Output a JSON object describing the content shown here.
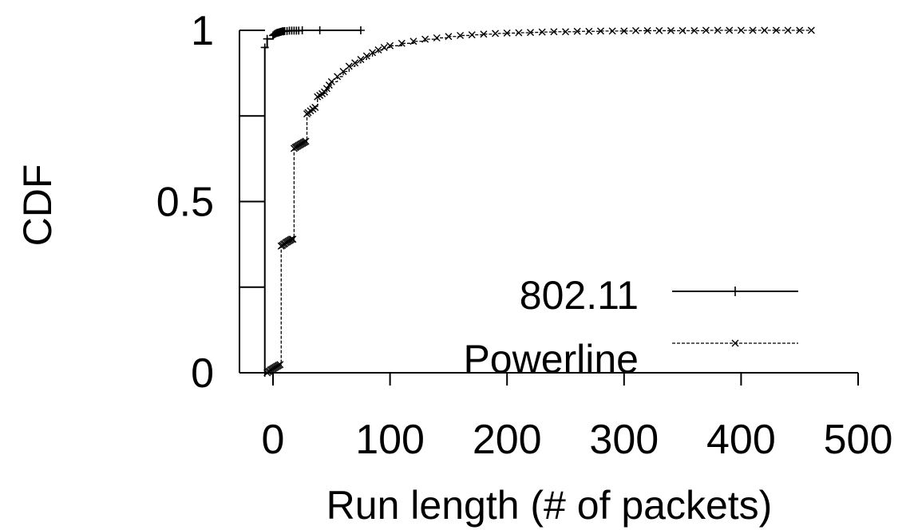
{
  "chart_data": {
    "type": "line",
    "xlabel": "Run length (# of packets)",
    "ylabel": "CDF",
    "xlim": [
      -10,
      500
    ],
    "ylim": [
      0,
      1
    ],
    "x_ticks": [
      0,
      100,
      200,
      300,
      400,
      500
    ],
    "x_tick_labels": [
      "0",
      "100",
      "200",
      "300",
      "400",
      "500"
    ],
    "y_ticks": [
      0,
      0.25,
      0.5,
      0.75,
      1
    ],
    "y_tick_labels": [
      "0",
      "",
      "0.5",
      "",
      "1"
    ],
    "legend_position": "bottom-right",
    "series": [
      {
        "name": "802.11",
        "style": "solid",
        "marker": "plus",
        "color": "#000000",
        "x": [
          -7,
          -7,
          -5,
          0,
          1,
          2,
          3,
          4,
          5,
          6,
          7,
          8,
          9,
          10,
          12,
          14,
          16,
          18,
          20,
          22,
          25,
          40,
          75
        ],
        "y": [
          0,
          0.95,
          0.975,
          0.985,
          0.988,
          0.99,
          0.992,
          0.993,
          0.994,
          0.995,
          0.996,
          0.997,
          0.997,
          0.998,
          0.998,
          0.999,
          0.999,
          0.999,
          0.999,
          0.999,
          1,
          1,
          1
        ]
      },
      {
        "name": "Powerline",
        "style": "dashed",
        "marker": "x",
        "color": "#000000",
        "x": [
          -5,
          -4,
          -3,
          -2,
          -1,
          0,
          1,
          2,
          3,
          4,
          5,
          6,
          7,
          8,
          9,
          10,
          11,
          12,
          13,
          14,
          15,
          16,
          17,
          18,
          19,
          20,
          21,
          22,
          23,
          24,
          25,
          26,
          27,
          28,
          29,
          30,
          32,
          34,
          36,
          38,
          40,
          42,
          44,
          46,
          48,
          50,
          55,
          60,
          65,
          70,
          75,
          80,
          85,
          90,
          95,
          100,
          110,
          120,
          130,
          140,
          150,
          160,
          170,
          180,
          190,
          200,
          210,
          220,
          230,
          240,
          250,
          260,
          270,
          280,
          290,
          300,
          310,
          320,
          330,
          340,
          350,
          360,
          370,
          380,
          390,
          400,
          410,
          420,
          430,
          440,
          450,
          460
        ],
        "y": [
          0,
          0.003,
          0.005,
          0.008,
          0.01,
          0.012,
          0.014,
          0.016,
          0.018,
          0.02,
          0.022,
          0.024,
          0.37,
          0.372,
          0.375,
          0.377,
          0.38,
          0.382,
          0.384,
          0.386,
          0.388,
          0.39,
          0.39,
          0.655,
          0.658,
          0.66,
          0.662,
          0.664,
          0.666,
          0.668,
          0.67,
          0.672,
          0.674,
          0.676,
          0.756,
          0.76,
          0.765,
          0.77,
          0.775,
          0.806,
          0.81,
          0.815,
          0.82,
          0.83,
          0.84,
          0.85,
          0.865,
          0.88,
          0.895,
          0.905,
          0.915,
          0.925,
          0.935,
          0.943,
          0.95,
          0.955,
          0.962,
          0.968,
          0.974,
          0.978,
          0.982,
          0.985,
          0.987,
          0.989,
          0.991,
          0.992,
          0.993,
          0.994,
          0.995,
          0.996,
          0.996,
          0.997,
          0.997,
          0.998,
          0.998,
          0.998,
          0.999,
          0.999,
          0.999,
          0.999,
          0.999,
          0.999,
          1,
          1,
          1,
          1,
          1,
          1,
          1,
          1,
          1,
          1
        ]
      }
    ]
  }
}
